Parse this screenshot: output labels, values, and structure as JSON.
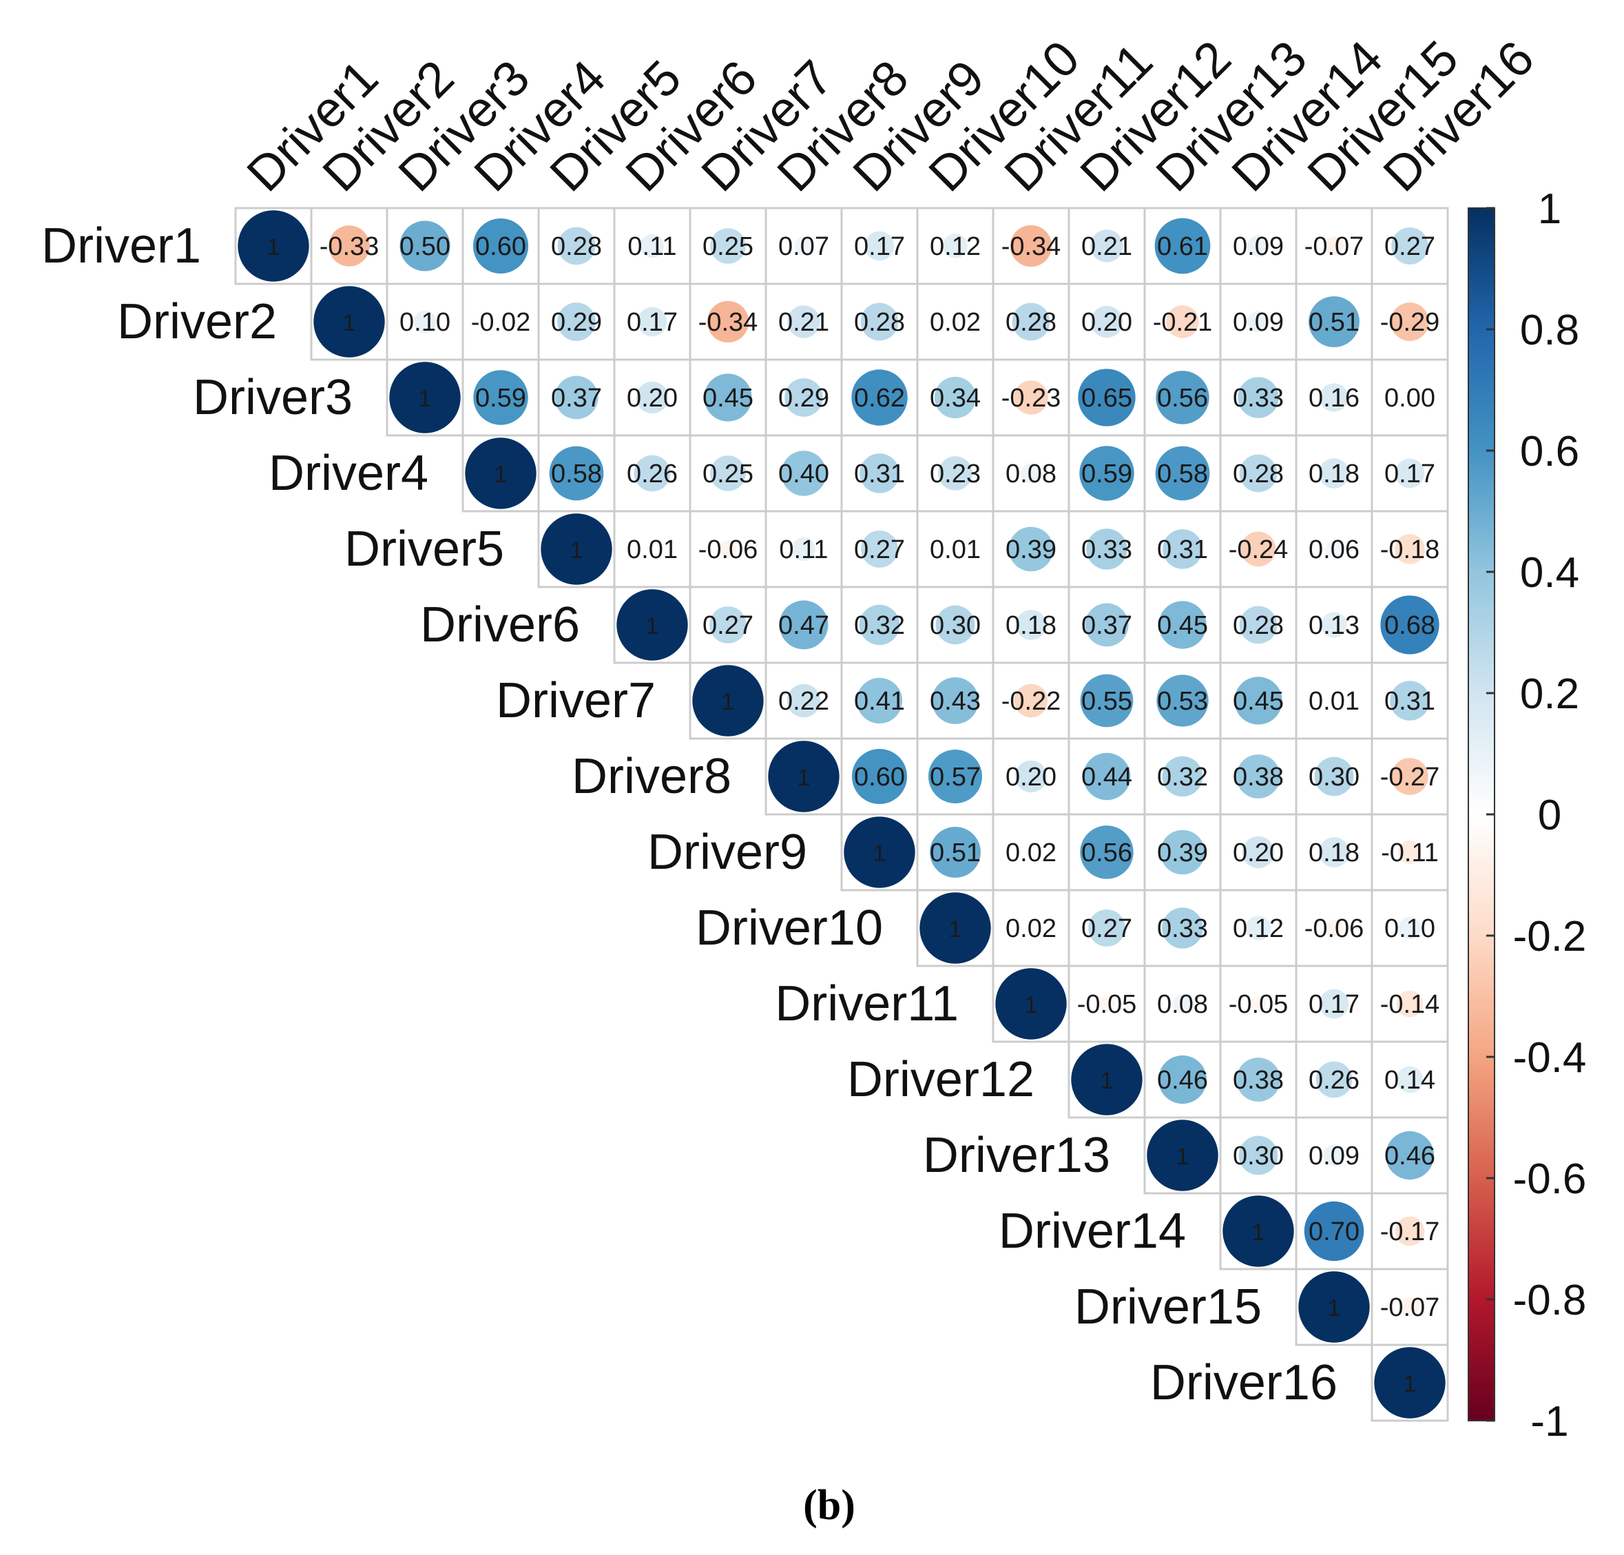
{
  "chart_data": {
    "type": "heatmap",
    "subtype": "correlation-upper-triangle-circles",
    "variables": [
      "Driver1",
      "Driver2",
      "Driver3",
      "Driver4",
      "Driver5",
      "Driver6",
      "Driver7",
      "Driver8",
      "Driver9",
      "Driver10",
      "Driver11",
      "Driver12",
      "Driver13",
      "Driver14",
      "Driver15",
      "Driver16"
    ],
    "upper_triangle": [
      [
        "1",
        "-0.33",
        "0.50",
        "0.60",
        "0.28",
        "0.11",
        "0.25",
        "0.07",
        "0.17",
        "0.12",
        "-0.34",
        "0.21",
        "0.61",
        "0.09",
        "-0.07",
        "0.27"
      ],
      [
        "1",
        "0.10",
        "-0.02",
        "0.29",
        "0.17",
        "-0.34",
        "0.21",
        "0.28",
        "0.02",
        "0.28",
        "0.20",
        "-0.21",
        "0.09",
        "0.51",
        "-0.29"
      ],
      [
        "1",
        "0.59",
        "0.37",
        "0.20",
        "0.45",
        "0.29",
        "0.62",
        "0.34",
        "-0.23",
        "0.65",
        "0.56",
        "0.33",
        "0.16",
        "0.00"
      ],
      [
        "1",
        "0.58",
        "0.26",
        "0.25",
        "0.40",
        "0.31",
        "0.23",
        "0.08",
        "0.59",
        "0.58",
        "0.28",
        "0.18",
        "0.17"
      ],
      [
        "1",
        "0.01",
        "-0.06",
        "0.11",
        "0.27",
        "0.01",
        "0.39",
        "0.33",
        "0.31",
        "-0.24",
        "0.06",
        "-0.18"
      ],
      [
        "1",
        "0.27",
        "0.47",
        "0.32",
        "0.30",
        "0.18",
        "0.37",
        "0.45",
        "0.28",
        "0.13",
        "0.68"
      ],
      [
        "1",
        "0.22",
        "0.41",
        "0.43",
        "-0.22",
        "0.55",
        "0.53",
        "0.45",
        "0.01",
        "0.31"
      ],
      [
        "1",
        "0.60",
        "0.57",
        "0.20",
        "0.44",
        "0.32",
        "0.38",
        "0.30",
        "-0.27"
      ],
      [
        "1",
        "0.51",
        "0.02",
        "0.56",
        "0.39",
        "0.20",
        "0.18",
        "-0.11"
      ],
      [
        "1",
        "0.02",
        "0.27",
        "0.33",
        "0.12",
        "-0.06",
        "0.10"
      ],
      [
        "1",
        "-0.05",
        "0.08",
        "-0.05",
        "0.17",
        "-0.14"
      ],
      [
        "1",
        "0.46",
        "0.38",
        "0.26",
        "0.14"
      ],
      [
        "1",
        "0.30",
        "0.09",
        "0.46"
      ],
      [
        "1",
        "0.70",
        "-0.17"
      ],
      [
        "1",
        "-0.07"
      ],
      [
        "1"
      ]
    ],
    "colorbar": {
      "range": [
        -1,
        1
      ],
      "tick_labels": [
        "1",
        "0.8",
        "0.6",
        "0.4",
        "0.2",
        "0",
        "-0.2",
        "-0.4",
        "-0.6",
        "-0.8",
        "-1"
      ],
      "colors": {
        "negative_extreme": "#67001F",
        "negative_mid": "#F4A582",
        "zero": "#FFFFFF",
        "positive_mid": "#4393C3",
        "positive_extreme": "#053061"
      }
    },
    "panel_label": "(b)"
  }
}
